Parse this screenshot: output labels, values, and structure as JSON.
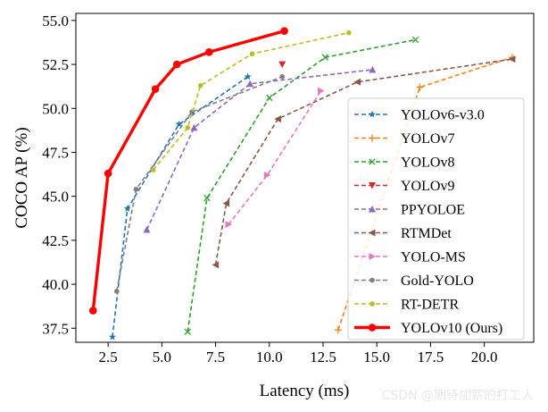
{
  "watermark": "CSDN @期待加薪的打工人",
  "chart_data": {
    "type": "line",
    "title": "",
    "xlabel": "Latency (ms)",
    "ylabel": "COCO AP (%)",
    "xlim": [
      1.0,
      22.3
    ],
    "ylim": [
      36.7,
      55.4
    ],
    "xticks": [
      2.5,
      5.0,
      7.5,
      10.0,
      12.5,
      15.0,
      17.5,
      20.0
    ],
    "xtick_labels": [
      "2.5",
      "5.0",
      "7.5",
      "10.0",
      "12.5",
      "15.0",
      "17.5",
      "20.0"
    ],
    "yticks": [
      37.5,
      40.0,
      42.5,
      45.0,
      47.5,
      50.0,
      52.5,
      55.0
    ],
    "ytick_labels": [
      "37.5",
      "40.0",
      "42.5",
      "45.0",
      "47.5",
      "50.0",
      "52.5",
      "55.0"
    ],
    "grid": false,
    "legend_position": "lower-right",
    "series": [
      {
        "name": "YOLOv6-v3.0",
        "color": "#1f77b4",
        "marker": "star",
        "dashed": true,
        "x": [
          2.7,
          3.4,
          5.8,
          9.0
        ],
        "y": [
          37.0,
          44.3,
          49.1,
          51.8
        ]
      },
      {
        "name": "YOLOv7",
        "color": "#ff7f0e",
        "marker": "plus",
        "dashed": true,
        "x": [
          13.2,
          17.0,
          21.3
        ],
        "y": [
          37.4,
          51.2,
          52.9
        ]
      },
      {
        "name": "YOLOv8",
        "color": "#2ca02c",
        "marker": "x",
        "dashed": true,
        "x": [
          6.2,
          7.1,
          10.0,
          12.6,
          16.8
        ],
        "y": [
          37.3,
          44.9,
          50.6,
          52.9,
          53.9
        ]
      },
      {
        "name": "YOLOv9",
        "color": "#d62728",
        "marker": "triangle-down",
        "dashed": true,
        "x": [
          10.6
        ],
        "y": [
          52.5
        ]
      },
      {
        "name": "PPYOLOE",
        "color": "#9467bd",
        "marker": "triangle-up",
        "dashed": true,
        "x": [
          4.3,
          6.5,
          9.1,
          14.8
        ],
        "y": [
          43.1,
          48.9,
          51.4,
          52.2
        ]
      },
      {
        "name": "RTMDet",
        "color": "#8c564b",
        "marker": "triangle-left",
        "dashed": true,
        "x": [
          7.5,
          8.0,
          10.4,
          14.1,
          21.3
        ],
        "y": [
          41.1,
          44.6,
          49.4,
          51.5,
          52.8
        ]
      },
      {
        "name": "YOLO-MS",
        "color": "#e377c2",
        "marker": "triangle-right",
        "dashed": true,
        "x": [
          8.1,
          9.9,
          12.4
        ],
        "y": [
          43.4,
          46.2,
          51.0
        ]
      },
      {
        "name": "Gold-YOLO",
        "color": "#7f7f7f",
        "marker": "circle-small",
        "dashed": true,
        "x": [
          2.9,
          3.8,
          6.4,
          10.6
        ],
        "y": [
          39.6,
          45.4,
          49.8,
          51.8
        ]
      },
      {
        "name": "RT-DETR",
        "color": "#bcbd22",
        "marker": "circle-small",
        "dashed": true,
        "x": [
          4.6,
          6.2,
          6.8,
          9.2,
          13.7
        ],
        "y": [
          46.5,
          48.9,
          51.3,
          53.1,
          54.3
        ]
      },
      {
        "name": "YOLOv10 (Ours)",
        "color": "#ff0000",
        "marker": "circle",
        "dashed": false,
        "x": [
          1.8,
          2.5,
          4.7,
          5.7,
          7.2,
          10.7
        ],
        "y": [
          38.5,
          46.3,
          51.1,
          52.5,
          53.2,
          54.4
        ]
      }
    ]
  }
}
